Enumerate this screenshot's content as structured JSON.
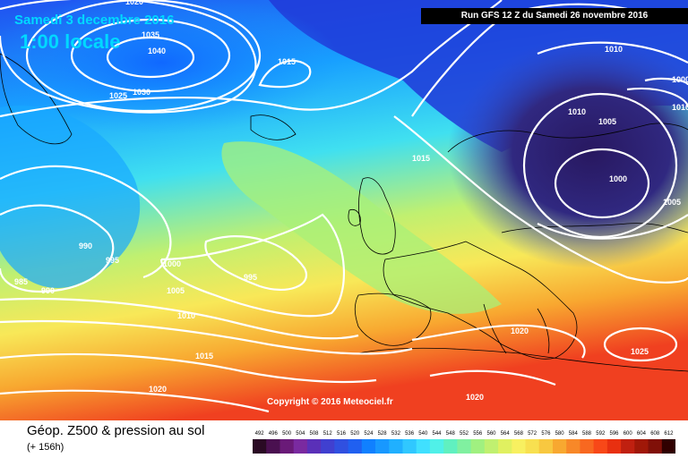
{
  "header": {
    "date": "Samedi 3 decembre 2016",
    "time": "1:00 locale",
    "run": "Run GFS 12 Z du Samedi 26 novembre 2016"
  },
  "copyright": "Copyright © 2016 Meteociel.fr",
  "legend": {
    "title": "Géop. Z500 & pression au sol",
    "subtitle": "(+ 156h)",
    "ticks": [
      "492",
      "496",
      "500",
      "504",
      "508",
      "512",
      "516",
      "520",
      "524",
      "528",
      "532",
      "536",
      "540",
      "544",
      "548",
      "552",
      "556",
      "560",
      "564",
      "568",
      "572",
      "576",
      "580",
      "584",
      "588",
      "592",
      "596",
      "600",
      "604",
      "608",
      "612"
    ],
    "colors": [
      "#2a0a24",
      "#4a1050",
      "#6a1a78",
      "#7a2aa0",
      "#5a30b8",
      "#4040d0",
      "#3050e0",
      "#2060f0",
      "#1080ff",
      "#1898ff",
      "#20b0ff",
      "#30c8ff",
      "#40e0ff",
      "#50f0e8",
      "#60f0c0",
      "#80f0a0",
      "#a0f080",
      "#c0f070",
      "#e0f060",
      "#f8f060",
      "#f8e050",
      "#f8c840",
      "#f8a830",
      "#f88828",
      "#f86820",
      "#f84818",
      "#e83010",
      "#c02010",
      "#a01808",
      "#801008",
      "#300000"
    ]
  },
  "isobars": [
    "1020",
    "1035",
    "1040",
    "1030",
    "1025",
    "1015",
    "1010",
    "1010",
    "1005",
    "1000",
    "1005",
    "1010",
    "1000",
    "1015",
    "990",
    "995",
    "1000",
    "995",
    "985",
    "990",
    "1005",
    "1010",
    "1015",
    "1020",
    "1020",
    "1025",
    "1020"
  ]
}
